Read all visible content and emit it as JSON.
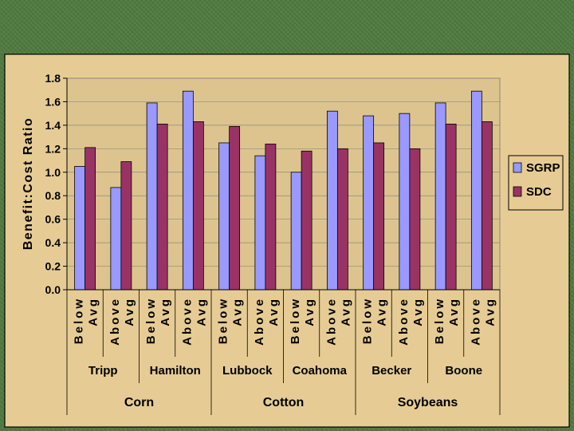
{
  "chart_data": {
    "type": "bar",
    "ylabel": "Benefit:Cost Ratio",
    "ylim": [
      0,
      1.8
    ],
    "yticks": [
      0.0,
      0.2,
      0.4,
      0.6,
      0.8,
      1.0,
      1.2,
      1.4,
      1.6,
      1.8
    ],
    "grid": true,
    "legend_position": "right",
    "categories": [
      {
        "level": "Below Avg",
        "site": "Tripp",
        "crop": "Corn"
      },
      {
        "level": "Above Avg",
        "site": "Tripp",
        "crop": "Corn"
      },
      {
        "level": "Below Avg",
        "site": "Hamilton",
        "crop": "Corn"
      },
      {
        "level": "Above Avg",
        "site": "Hamilton",
        "crop": "Corn"
      },
      {
        "level": "Below Avg",
        "site": "Lubbock",
        "crop": "Cotton"
      },
      {
        "level": "Above Avg",
        "site": "Lubbock",
        "crop": "Cotton"
      },
      {
        "level": "Below Avg",
        "site": "Coahoma",
        "crop": "Cotton"
      },
      {
        "level": "Above Avg",
        "site": "Coahoma",
        "crop": "Cotton"
      },
      {
        "level": "Below Avg",
        "site": "Becker",
        "crop": "Soybeans"
      },
      {
        "level": "Above Avg",
        "site": "Becker",
        "crop": "Soybeans"
      },
      {
        "level": "Below Avg",
        "site": "Boone",
        "crop": "Soybeans"
      },
      {
        "level": "Above Avg",
        "site": "Boone",
        "crop": "Soybeans"
      }
    ],
    "sites": [
      "Tripp",
      "Hamilton",
      "Lubbock",
      "Coahoma",
      "Becker",
      "Boone"
    ],
    "crops": [
      "Corn",
      "Cotton",
      "Soybeans"
    ],
    "series": [
      {
        "name": "SGRP",
        "color": "#9999ff",
        "values": [
          1.05,
          0.87,
          1.59,
          1.69,
          1.25,
          1.14,
          1.0,
          1.52,
          1.48,
          1.5,
          1.59,
          1.69
        ]
      },
      {
        "name": "SDC",
        "color": "#993366",
        "values": [
          1.21,
          1.09,
          1.41,
          1.43,
          1.39,
          1.24,
          1.18,
          1.2,
          1.25,
          1.2,
          1.41,
          1.43
        ]
      }
    ],
    "colors": {
      "slide_background": "#4f7a3e",
      "panel_background": "#e6cc94",
      "plot_background": "#ddc48e"
    }
  }
}
